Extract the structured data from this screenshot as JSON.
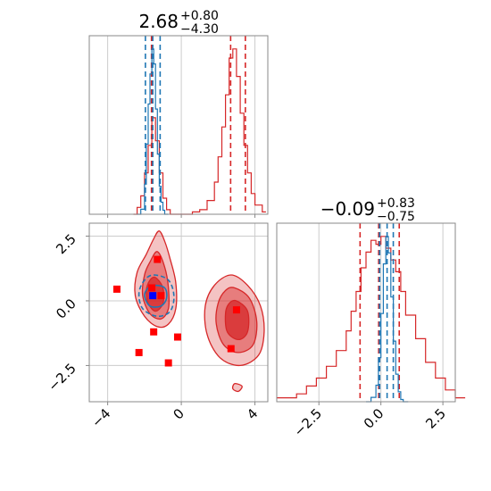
{
  "colors": {
    "red": "#d62728",
    "blue": "#1f77b4",
    "marker_red": "#ff0000",
    "marker_blue": "#0000ff",
    "grid": "#cccccc",
    "axis": "#888888"
  },
  "chart_data": [
    {
      "type": "histogram",
      "panel": "marginal-x",
      "title": {
        "value": "2.68",
        "upper": "+0.80",
        "lower": "−4.30"
      },
      "xlim": [
        -5,
        4.7
      ],
      "x_ticks": [
        -4,
        0,
        4
      ],
      "series": [
        {
          "color": "red",
          "quantiles": [
            -1.62,
            2.68,
            3.48
          ],
          "bins": [
            [
              -2.6,
              0
            ],
            [
              -2.4,
              3
            ],
            [
              -2.2,
              8
            ],
            [
              -2.0,
              18
            ],
            [
              -1.8,
              30
            ],
            [
              -1.6,
              42
            ],
            [
              -1.4,
              32
            ],
            [
              -1.2,
              18
            ],
            [
              -1.0,
              7
            ],
            [
              -0.8,
              2
            ],
            [
              -0.6,
              0
            ],
            [
              0.6,
              1
            ],
            [
              1.0,
              2
            ],
            [
              1.4,
              6
            ],
            [
              1.8,
              14
            ],
            [
              2.0,
              25
            ],
            [
              2.2,
              38
            ],
            [
              2.4,
              52
            ],
            [
              2.6,
              68
            ],
            [
              2.8,
              72
            ],
            [
              3.0,
              60
            ],
            [
              3.2,
              44
            ],
            [
              3.4,
              30
            ],
            [
              3.6,
              18
            ],
            [
              3.8,
              9
            ],
            [
              4.0,
              4
            ],
            [
              4.4,
              1
            ]
          ]
        },
        {
          "color": "blue",
          "quantiles": [
            -1.95,
            -1.55,
            -1.15
          ],
          "bins": [
            [
              -2.4,
              0
            ],
            [
              -2.2,
              5
            ],
            [
              -2.0,
              30
            ],
            [
              -1.9,
              70
            ],
            [
              -1.8,
              110
            ],
            [
              -1.7,
              140
            ],
            [
              -1.6,
              165
            ],
            [
              -1.5,
              150
            ],
            [
              -1.4,
              105
            ],
            [
              -1.3,
              60
            ],
            [
              -1.2,
              28
            ],
            [
              -1.1,
              12
            ],
            [
              -1.0,
              4
            ],
            [
              -0.9,
              0
            ]
          ]
        }
      ]
    },
    {
      "type": "contour",
      "panel": "joint",
      "xlim": [
        -5,
        4.7
      ],
      "ylim": [
        -3.9,
        3.0
      ],
      "x_ticks": [
        -4,
        0,
        4
      ],
      "y_ticks": [
        2.5,
        0.0,
        -2.5
      ],
      "x_tick_labels": [
        "−4",
        "0",
        "4"
      ],
      "y_tick_labels": [
        "2.5",
        "0.0",
        "−2.5"
      ],
      "red_contours": [
        {
          "level": "outer",
          "points": [
            [
              -1.2,
              2.7
            ],
            [
              -0.9,
              2.3
            ],
            [
              -0.6,
              1.6
            ],
            [
              -0.3,
              0.7
            ],
            [
              -0.3,
              -0.3
            ],
            [
              -0.7,
              -0.9
            ],
            [
              -1.3,
              -1.0
            ],
            [
              -2.0,
              -0.6
            ],
            [
              -2.5,
              0.2
            ],
            [
              -2.4,
              1.1
            ],
            [
              -1.9,
              1.8
            ],
            [
              -1.5,
              2.4
            ]
          ]
        },
        {
          "level": "middle",
          "points": [
            [
              -1.3,
              1.9
            ],
            [
              -0.9,
              1.3
            ],
            [
              -0.7,
              0.5
            ],
            [
              -0.7,
              -0.3
            ],
            [
              -1.1,
              -0.7
            ],
            [
              -1.7,
              -0.5
            ],
            [
              -2.1,
              0.2
            ],
            [
              -2.0,
              1.0
            ],
            [
              -1.7,
              1.5
            ]
          ]
        },
        {
          "level": "inner",
          "points": [
            [
              -1.4,
              0.9
            ],
            [
              -1.0,
              0.5
            ],
            [
              -1.0,
              -0.1
            ],
            [
              -1.4,
              -0.4
            ],
            [
              -1.8,
              -0.1
            ],
            [
              -1.9,
              0.4
            ],
            [
              -1.7,
              0.8
            ]
          ]
        },
        {
          "level": "outer",
          "points": [
            [
              2.7,
              1.0
            ],
            [
              3.6,
              0.6
            ],
            [
              4.3,
              -0.2
            ],
            [
              4.5,
              -1.2
            ],
            [
              4.2,
              -2.1
            ],
            [
              3.2,
              -2.5
            ],
            [
              2.1,
              -2.2
            ],
            [
              1.4,
              -1.3
            ],
            [
              1.3,
              -0.2
            ],
            [
              1.8,
              0.6
            ]
          ]
        },
        {
          "level": "middle",
          "points": [
            [
              2.9,
              0.5
            ],
            [
              3.7,
              0.1
            ],
            [
              4.1,
              -0.8
            ],
            [
              3.9,
              -1.7
            ],
            [
              3.1,
              -2.0
            ],
            [
              2.3,
              -1.7
            ],
            [
              1.9,
              -0.9
            ],
            [
              2.0,
              -0.1
            ],
            [
              2.4,
              0.4
            ]
          ]
        },
        {
          "level": "inner",
          "points": [
            [
              3.0,
              0.0
            ],
            [
              3.6,
              -0.4
            ],
            [
              3.6,
              -1.2
            ],
            [
              3.1,
              -1.5
            ],
            [
              2.5,
              -1.2
            ],
            [
              2.4,
              -0.5
            ],
            [
              2.6,
              -0.1
            ]
          ]
        },
        {
          "level": "outer",
          "points": [
            [
              2.9,
              -3.2
            ],
            [
              3.3,
              -3.3
            ],
            [
              3.1,
              -3.5
            ],
            [
              2.8,
              -3.4
            ]
          ]
        }
      ],
      "blue_contours": [
        {
          "level": "outer",
          "points": [
            [
              -1.5,
              1.0
            ],
            [
              -0.7,
              0.8
            ],
            [
              -0.4,
              0.2
            ],
            [
              -0.6,
              -0.4
            ],
            [
              -1.3,
              -0.6
            ],
            [
              -2.1,
              -0.3
            ],
            [
              -2.3,
              0.3
            ],
            [
              -2.0,
              0.8
            ]
          ]
        },
        {
          "level": "inner",
          "points": [
            [
              -1.5,
              0.6
            ],
            [
              -0.9,
              0.5
            ],
            [
              -0.8,
              0.1
            ],
            [
              -1.1,
              -0.2
            ],
            [
              -1.7,
              -0.2
            ],
            [
              -2.0,
              0.2
            ],
            [
              -1.8,
              0.5
            ]
          ]
        }
      ],
      "red_markers": [
        [
          -1.3,
          1.6
        ],
        [
          -3.5,
          0.45
        ],
        [
          -1.6,
          0.5
        ],
        [
          -1.1,
          0.2
        ],
        [
          -1.5,
          -1.2
        ],
        [
          -2.3,
          -2.0
        ],
        [
          -0.7,
          -2.4
        ],
        [
          -0.2,
          -1.4
        ],
        [
          3.0,
          -0.35
        ],
        [
          2.7,
          -1.85
        ]
      ],
      "blue_markers": [
        [
          -1.55,
          0.2
        ]
      ]
    },
    {
      "type": "histogram",
      "panel": "marginal-y",
      "title": {
        "value": "−0.09",
        "upper": "+0.83",
        "lower": "−0.75"
      },
      "xlim": [
        -4.2,
        3.0
      ],
      "x_ticks": [
        -2.5,
        0.0,
        2.5
      ],
      "x_tick_labels": [
        "−2.5",
        "0.0",
        "2.5"
      ],
      "series": [
        {
          "color": "red",
          "quantiles": [
            -0.84,
            -0.09,
            0.74
          ],
          "bins": [
            [
              -4.2,
              1
            ],
            [
              -3.8,
              1
            ],
            [
              -3.4,
              2
            ],
            [
              -3.0,
              4
            ],
            [
              -2.6,
              6
            ],
            [
              -2.2,
              9
            ],
            [
              -1.8,
              13
            ],
            [
              -1.4,
              18
            ],
            [
              -1.2,
              23
            ],
            [
              -1.0,
              28
            ],
            [
              -0.8,
              34
            ],
            [
              -0.6,
              38
            ],
            [
              -0.4,
              41
            ],
            [
              -0.2,
              40
            ],
            [
              0.0,
              42
            ],
            [
              0.2,
              39
            ],
            [
              0.4,
              36
            ],
            [
              0.6,
              33
            ],
            [
              0.8,
              28
            ],
            [
              1.0,
              22
            ],
            [
              1.4,
              16
            ],
            [
              1.8,
              10
            ],
            [
              2.2,
              6
            ],
            [
              2.6,
              3
            ],
            [
              3.0,
              1
            ]
          ]
        },
        {
          "color": "blue",
          "quantiles": [
            -0.05,
            0.25,
            0.5
          ],
          "bins": [
            [
              -0.6,
              0
            ],
            [
              -0.4,
              4
            ],
            [
              -0.2,
              15
            ],
            [
              -0.1,
              40
            ],
            [
              0.0,
              80
            ],
            [
              0.1,
              125
            ],
            [
              0.2,
              150
            ],
            [
              0.3,
              135
            ],
            [
              0.4,
              95
            ],
            [
              0.5,
              55
            ],
            [
              0.6,
              25
            ],
            [
              0.7,
              9
            ],
            [
              0.8,
              2
            ],
            [
              0.9,
              0
            ]
          ]
        }
      ]
    }
  ]
}
